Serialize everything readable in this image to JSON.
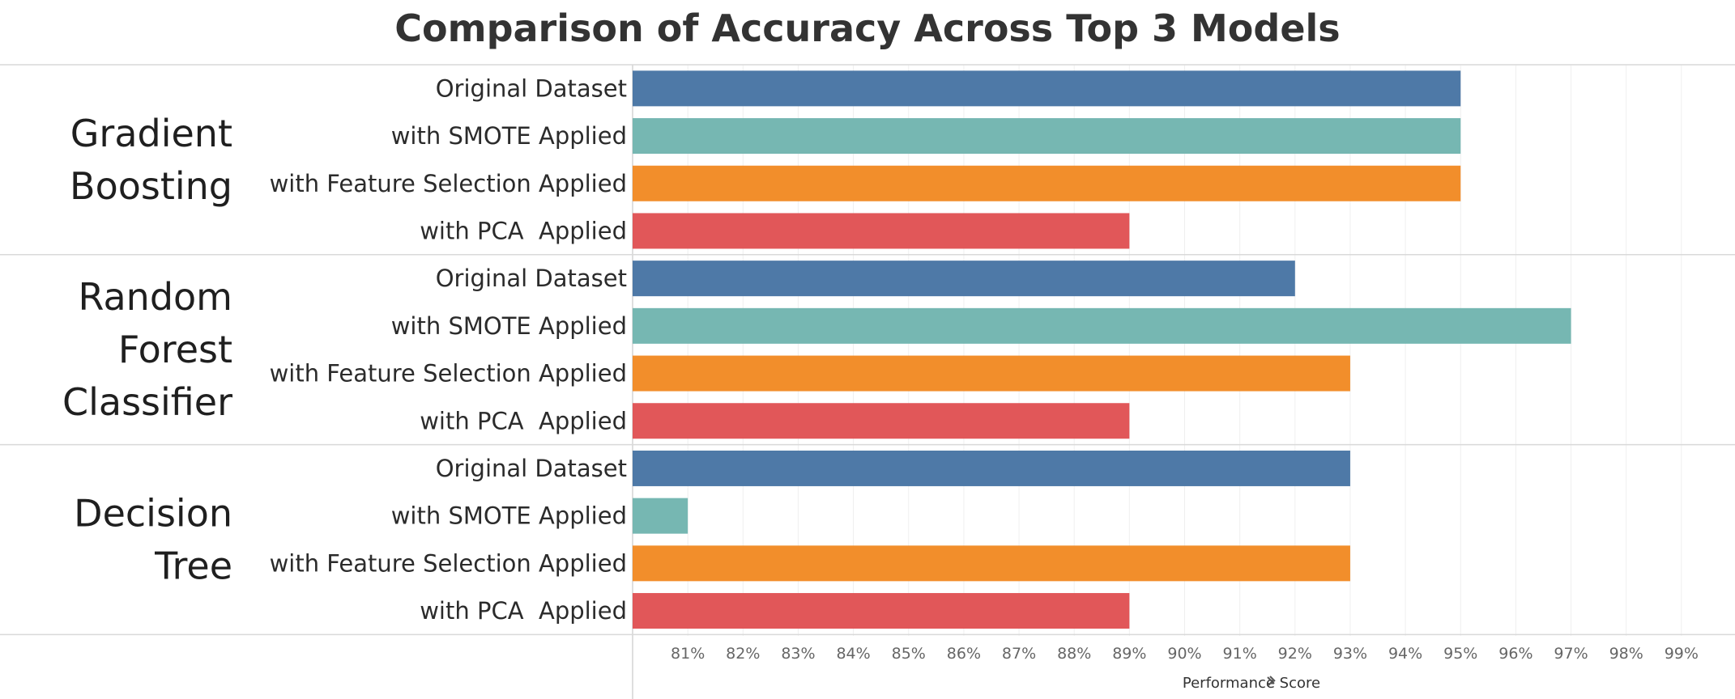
{
  "chart_data": {
    "type": "bar",
    "orientation": "horizontal",
    "title": "Comparison of Accuracy Across Top 3 Models",
    "xlabel": "Performance Score",
    "xlabel_icon": "pin-icon",
    "xlim": [
      80,
      100
    ],
    "ticks": [
      81,
      82,
      83,
      84,
      85,
      86,
      87,
      88,
      89,
      90,
      91,
      92,
      93,
      94,
      95,
      96,
      97,
      98,
      99
    ],
    "tick_labels": [
      "81%",
      "82%",
      "83%",
      "84%",
      "85%",
      "86%",
      "87%",
      "88%",
      "89%",
      "90%",
      "91%",
      "92%",
      "93%",
      "94%",
      "95%",
      "96%",
      "97%",
      "98%",
      "99%"
    ],
    "grid": "vertical",
    "colors": {
      "Original Dataset": "#4e79a7",
      "with SMOTE Applied": "#76b7b2",
      "with Feature Selection Applied": "#f28e2b",
      "with PCA  Applied": "#e15759"
    },
    "groups": [
      {
        "name": "Gradient Boosting",
        "name_lines": [
          "Gradient",
          "Boosting"
        ],
        "categories": [
          "Original Dataset",
          "with SMOTE Applied",
          "with Feature Selection Applied",
          "with PCA  Applied"
        ],
        "values": [
          95,
          95,
          95,
          89
        ]
      },
      {
        "name": "Random Forest Classifier",
        "name_lines": [
          "Random",
          "Forest",
          "Classifier"
        ],
        "categories": [
          "Original Dataset",
          "with SMOTE Applied",
          "with Feature Selection Applied",
          "with PCA  Applied"
        ],
        "values": [
          92,
          97,
          93,
          89
        ]
      },
      {
        "name": "Decision Tree",
        "name_lines": [
          "Decision",
          "Tree"
        ],
        "categories": [
          "Original Dataset",
          "with SMOTE Applied",
          "with Feature Selection Applied",
          "with PCA  Applied"
        ],
        "values": [
          93,
          81,
          93,
          89
        ]
      }
    ]
  }
}
